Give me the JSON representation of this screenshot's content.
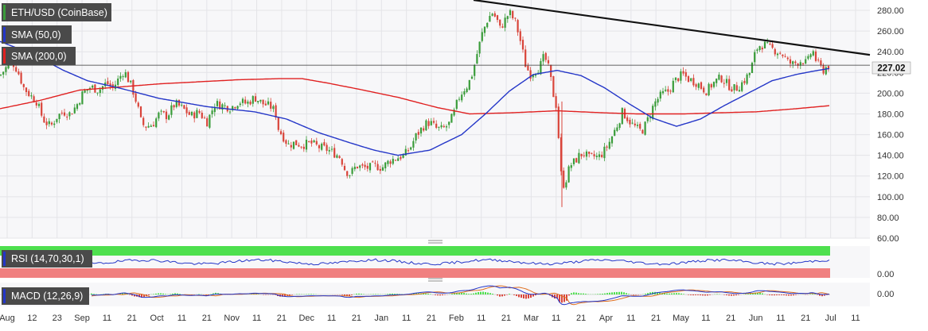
{
  "colors": {
    "background": "#ffffff",
    "plot_background": "#f7f7f9",
    "grid": "#e4e4e8",
    "candle_up": "#3a9c3a",
    "candle_down": "#d9443a",
    "sma50": "#2436c8",
    "sma200": "#e02020",
    "trendline": "#111111",
    "rsi_line": "#2436c8",
    "rsi_overbought": "#4ee04e",
    "rsi_oversold": "#f08080",
    "macd_line": "#2436c8",
    "macd_signal": "#e07020",
    "label_bg": "#4a4a4a",
    "price_badge_bg": "#f0f0f0"
  },
  "chart_data": [
    {
      "type": "candlestick",
      "legend": [
        {
          "label": "ETH/USD (CoinBase)",
          "swatch": "#3a9c3a"
        },
        {
          "label": "SMA (50,0)",
          "swatch": "#2436c8"
        },
        {
          "label": "SMA (200,0)",
          "swatch": "#e02020"
        }
      ],
      "ylim": [
        60,
        290
      ],
      "yticks": [
        "280.00",
        "260.00",
        "240.00",
        "220.00",
        "200.00",
        "180.00",
        "160.00",
        "140.00",
        "120.00",
        "100.00",
        "80.00",
        "60.00"
      ],
      "ytick_values": [
        280,
        260,
        240,
        220,
        200,
        180,
        160,
        140,
        120,
        100,
        80,
        60
      ],
      "current_price": 227.02,
      "current_price_label": "227.02",
      "price_anchors": [
        [
          0,
          217
        ],
        [
          8,
          225
        ],
        [
          14,
          232
        ],
        [
          22,
          222
        ],
        [
          30,
          205
        ],
        [
          38,
          198
        ],
        [
          46,
          192
        ],
        [
          54,
          175
        ],
        [
          60,
          170
        ],
        [
          64,
          168
        ],
        [
          72,
          178
        ],
        [
          80,
          182
        ],
        [
          88,
          180
        ],
        [
          96,
          188
        ],
        [
          104,
          200
        ],
        [
          114,
          206
        ],
        [
          124,
          203
        ],
        [
          134,
          210
        ],
        [
          142,
          205
        ],
        [
          150,
          215
        ],
        [
          156,
          222
        ],
        [
          160,
          215
        ],
        [
          166,
          205
        ],
        [
          172,
          190
        ],
        [
          178,
          170
        ],
        [
          184,
          168
        ],
        [
          192,
          170
        ],
        [
          200,
          180
        ],
        [
          210,
          178
        ],
        [
          220,
          190
        ],
        [
          230,
          185
        ],
        [
          240,
          178
        ],
        [
          250,
          182
        ],
        [
          260,
          172
        ],
        [
          270,
          190
        ],
        [
          280,
          188
        ],
        [
          290,
          186
        ],
        [
          300,
          192
        ],
        [
          310,
          190
        ],
        [
          320,
          196
        ],
        [
          330,
          190
        ],
        [
          340,
          187
        ],
        [
          346,
          182
        ],
        [
          350,
          165
        ],
        [
          356,
          158
        ],
        [
          362,
          150
        ],
        [
          370,
          152
        ],
        [
          380,
          150
        ],
        [
          390,
          152
        ],
        [
          400,
          148
        ],
        [
          410,
          146
        ],
        [
          420,
          142
        ],
        [
          428,
          138
        ],
        [
          434,
          125
        ],
        [
          440,
          122
        ],
        [
          448,
          130
        ],
        [
          456,
          128
        ],
        [
          464,
          128
        ],
        [
          472,
          130
        ],
        [
          480,
          128
        ],
        [
          490,
          135
        ],
        [
          500,
          138
        ],
        [
          508,
          140
        ],
        [
          516,
          148
        ],
        [
          522,
          158
        ],
        [
          528,
          164
        ],
        [
          534,
          170
        ],
        [
          540,
          172
        ],
        [
          548,
          166
        ],
        [
          556,
          165
        ],
        [
          564,
          170
        ],
        [
          570,
          180
        ],
        [
          576,
          195
        ],
        [
          582,
          203
        ],
        [
          588,
          208
        ],
        [
          594,
          220
        ],
        [
          600,
          240
        ],
        [
          606,
          258
        ],
        [
          612,
          270
        ],
        [
          618,
          278
        ],
        [
          624,
          272
        ],
        [
          628,
          262
        ],
        [
          634,
          270
        ],
        [
          640,
          278
        ],
        [
          648,
          268
        ],
        [
          654,
          250
        ],
        [
          660,
          228
        ],
        [
          666,
          218
        ],
        [
          672,
          222
        ],
        [
          678,
          225
        ],
        [
          684,
          236
        ],
        [
          690,
          222
        ],
        [
          696,
          196
        ],
        [
          700,
          185
        ],
        [
          704,
          125
        ],
        [
          708,
          112
        ],
        [
          712,
          118
        ],
        [
          716,
          130
        ],
        [
          722,
          134
        ],
        [
          728,
          140
        ],
        [
          734,
          142
        ],
        [
          740,
          137
        ],
        [
          746,
          139
        ],
        [
          752,
          138
        ],
        [
          758,
          143
        ],
        [
          764,
          150
        ],
        [
          770,
          160
        ],
        [
          776,
          170
        ],
        [
          782,
          182
        ],
        [
          788,
          176
        ],
        [
          794,
          170
        ],
        [
          800,
          166
        ],
        [
          806,
          163
        ],
        [
          810,
          168
        ],
        [
          816,
          178
        ],
        [
          822,
          190
        ],
        [
          828,
          196
        ],
        [
          834,
          200
        ],
        [
          840,
          202
        ],
        [
          846,
          210
        ],
        [
          852,
          215
        ],
        [
          858,
          218
        ],
        [
          864,
          214
        ],
        [
          870,
          212
        ],
        [
          876,
          210
        ],
        [
          882,
          205
        ],
        [
          888,
          202
        ],
        [
          894,
          208
        ],
        [
          900,
          212
        ],
        [
          906,
          215
        ],
        [
          912,
          210
        ],
        [
          918,
          206
        ],
        [
          924,
          204
        ],
        [
          930,
          208
        ],
        [
          936,
          213
        ],
        [
          942,
          220
        ],
        [
          946,
          230
        ],
        [
          950,
          242
        ],
        [
          954,
          246
        ],
        [
          960,
          247
        ],
        [
          966,
          244
        ],
        [
          972,
          242
        ],
        [
          978,
          240
        ],
        [
          984,
          237
        ],
        [
          990,
          230
        ],
        [
          996,
          228
        ],
        [
          1002,
          230
        ],
        [
          1008,
          232
        ],
        [
          1014,
          228
        ],
        [
          1018,
          238
        ],
        [
          1022,
          240
        ],
        [
          1026,
          230
        ],
        [
          1030,
          226
        ],
        [
          1034,
          222
        ],
        [
          1038,
          225
        ],
        [
          1043,
          227
        ]
      ],
      "sma50_anchors": [
        [
          0,
          250
        ],
        [
          40,
          238
        ],
        [
          80,
          222
        ],
        [
          110,
          212
        ],
        [
          150,
          205
        ],
        [
          200,
          195
        ],
        [
          260,
          187
        ],
        [
          320,
          182
        ],
        [
          360,
          175
        ],
        [
          400,
          162
        ],
        [
          440,
          152
        ],
        [
          470,
          145
        ],
        [
          500,
          140
        ],
        [
          540,
          145
        ],
        [
          580,
          160
        ],
        [
          610,
          180
        ],
        [
          640,
          202
        ],
        [
          670,
          218
        ],
        [
          700,
          222
        ],
        [
          730,
          217
        ],
        [
          760,
          205
        ],
        [
          790,
          190
        ],
        [
          820,
          176
        ],
        [
          850,
          168
        ],
        [
          880,
          175
        ],
        [
          910,
          188
        ],
        [
          940,
          200
        ],
        [
          970,
          212
        ],
        [
          1000,
          218
        ],
        [
          1020,
          221
        ],
        [
          1043,
          224
        ]
      ],
      "sma200_anchors": [
        [
          0,
          185
        ],
        [
          50,
          193
        ],
        [
          100,
          203
        ],
        [
          150,
          206
        ],
        [
          200,
          209
        ],
        [
          250,
          211
        ],
        [
          300,
          213
        ],
        [
          350,
          214
        ],
        [
          380,
          214
        ],
        [
          410,
          210
        ],
        [
          450,
          204
        ],
        [
          500,
          196
        ],
        [
          550,
          186
        ],
        [
          590,
          180
        ],
        [
          640,
          181
        ],
        [
          700,
          183
        ],
        [
          760,
          181
        ],
        [
          800,
          180
        ],
        [
          860,
          180
        ],
        [
          900,
          181
        ],
        [
          950,
          182
        ],
        [
          1000,
          185
        ],
        [
          1043,
          188
        ]
      ],
      "trendline": [
        [
          595,
          290
        ],
        [
          1093,
          237
        ]
      ],
      "sma50_label": "SMA (50,0)",
      "sma200_label": "SMA (200,0)"
    },
    {
      "type": "line",
      "label": "RSI (14,70,30,1)",
      "ylim": [
        0,
        100
      ],
      "yticks": [
        "0.00"
      ],
      "overbought": 70,
      "oversold": 30
    },
    {
      "type": "line",
      "label": "MACD (12,26,9)",
      "yticks": [
        "0.00"
      ]
    }
  ],
  "x_axis": {
    "labels": [
      "Aug",
      "12",
      "23",
      "Sep",
      "11",
      "21",
      "Oct",
      "11",
      "21",
      "Nov",
      "11",
      "21",
      "Dec",
      "11",
      "21",
      "Jan",
      "11",
      "21",
      "Feb",
      "11",
      "21",
      "Mar",
      "11",
      "21",
      "Apr",
      "11",
      "21",
      "May",
      "11",
      "21",
      "Jun",
      "11",
      "21",
      "Jul",
      "11"
    ]
  }
}
